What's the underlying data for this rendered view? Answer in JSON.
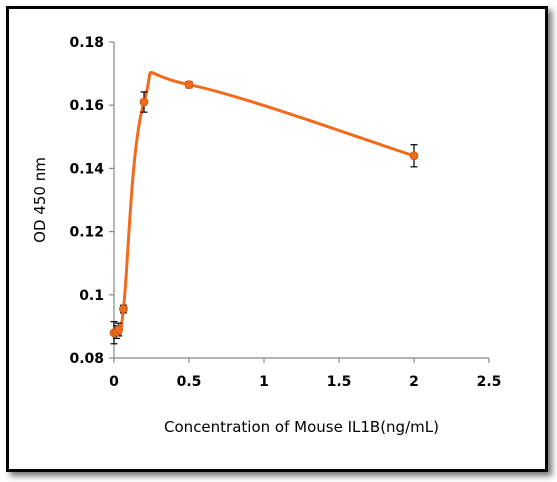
{
  "chart_data": {
    "type": "scatter",
    "xlabel": "Concentration of Mouse IL1B(ng/mL)",
    "ylabel": "OD 450 nm",
    "xlim": [
      0,
      2.5
    ],
    "ylim": [
      0.08,
      0.18
    ],
    "xticks": [
      "0",
      "0.5",
      "1",
      "1.5",
      "2",
      "2.5"
    ],
    "yticks": [
      "0.08",
      "0.1",
      "0.12",
      "0.14",
      "0.16",
      "0.18"
    ],
    "grid": false,
    "legend": "none",
    "series": [
      {
        "color": "#F26B1D",
        "x": [
          0,
          0.016,
          0.031,
          0.063,
          0.2,
          0.5,
          2
        ],
        "y": [
          0.088,
          0.0882,
          0.089,
          0.0955,
          0.161,
          0.1665,
          0.144
        ],
        "err": [
          0.0035,
          0.002,
          0.002,
          0.0012,
          0.0032,
          0.001,
          0.0035
        ]
      }
    ]
  }
}
